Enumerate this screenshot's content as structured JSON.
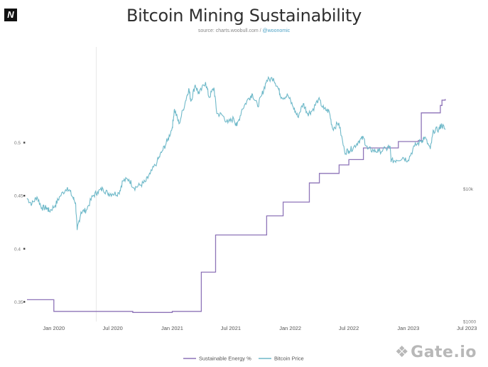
{
  "header": {
    "logo": "N",
    "title": "Bitcoin Mining Sustainability",
    "subtitle_source": "source: charts.woobull.com / ",
    "subtitle_handle": "@woonomic"
  },
  "watermark": {
    "text": "Gate.io",
    "icon": "gate-logo-icon"
  },
  "colors": {
    "energy": "#8e74b8",
    "price": "#6fb9c9",
    "axis_text": "#777777",
    "grid": "#e8e8e8"
  },
  "chart_data": {
    "type": "line",
    "title": "Bitcoin Mining Sustainability",
    "xlabel": "",
    "ylabel_left": "",
    "ylabel_right": "",
    "x_range": [
      "2019-10-10",
      "2023-06-15"
    ],
    "x_ticks": [
      {
        "date": "2020-01-01",
        "label": "Jan 2020"
      },
      {
        "date": "2020-07-01",
        "label": "Jul 2020"
      },
      {
        "date": "2021-01-01",
        "label": "Jan 2021"
      },
      {
        "date": "2021-07-01",
        "label": "Jul 2021"
      },
      {
        "date": "2022-01-01",
        "label": "Jan 2022"
      },
      {
        "date": "2022-07-01",
        "label": "Jul 2022"
      },
      {
        "date": "2023-01-01",
        "label": "Jan 2023"
      },
      {
        "date": "2023-07-01",
        "label": "Jul 2023"
      }
    ],
    "y_left_ticks": [
      {
        "value": 0.35,
        "label": "0.35"
      },
      {
        "value": 0.4,
        "label": "0.4"
      },
      {
        "value": 0.45,
        "label": "0.45"
      },
      {
        "value": 0.5,
        "label": "0.5"
      }
    ],
    "y_left_range": [
      0.3315,
      0.5955
    ],
    "y_right_scale": "log",
    "y_right_ticks": [
      {
        "value": 1000,
        "label": "$1000"
      },
      {
        "value": 10000,
        "label": "$10k"
      }
    ],
    "y_right_range": [
      1000,
      130000
    ],
    "reference_line_date": "2020-05-11",
    "legend_placement": "bottom-center",
    "grid": false,
    "series": [
      {
        "name": "Sustainable Energy %",
        "axis": "left",
        "style": "step",
        "points": [
          [
            "2019-10-10",
            0.352
          ],
          [
            "2020-01-01",
            0.341
          ],
          [
            "2020-09-01",
            0.34
          ],
          [
            "2021-01-01",
            0.341
          ],
          [
            "2021-04-01",
            0.378
          ],
          [
            "2021-05-15",
            0.413
          ],
          [
            "2021-10-20",
            0.431
          ],
          [
            "2021-12-10",
            0.444
          ],
          [
            "2022-03-01",
            0.462
          ],
          [
            "2022-04-01",
            0.471
          ],
          [
            "2022-06-01",
            0.479
          ],
          [
            "2022-07-01",
            0.484
          ],
          [
            "2022-08-15",
            0.495
          ],
          [
            "2022-12-01",
            0.501
          ],
          [
            "2023-02-01",
            0.502
          ],
          [
            "2023-02-10",
            0.528
          ],
          [
            "2023-04-10",
            0.535
          ],
          [
            "2023-04-15",
            0.54
          ],
          [
            "2023-04-25",
            0.541
          ]
        ]
      },
      {
        "name": "Bitcoin Price",
        "axis": "right",
        "style": "line",
        "points": [
          [
            "2019-10-10",
            8500
          ],
          [
            "2019-10-25",
            7700
          ],
          [
            "2019-11-10",
            8700
          ],
          [
            "2019-11-25",
            7200
          ],
          [
            "2019-12-10",
            7200
          ],
          [
            "2019-12-18",
            6800
          ],
          [
            "2020-01-05",
            7500
          ],
          [
            "2020-01-20",
            8800
          ],
          [
            "2020-02-12",
            10300
          ],
          [
            "2020-02-28",
            8700
          ],
          [
            "2020-03-08",
            7900
          ],
          [
            "2020-03-13",
            4900
          ],
          [
            "2020-03-25",
            6700
          ],
          [
            "2020-04-10",
            6900
          ],
          [
            "2020-04-30",
            8800
          ],
          [
            "2020-05-15",
            9500
          ],
          [
            "2020-06-01",
            10000
          ],
          [
            "2020-06-15",
            9300
          ],
          [
            "2020-07-01",
            9200
          ],
          [
            "2020-07-20",
            9300
          ],
          [
            "2020-08-01",
            11500
          ],
          [
            "2020-08-20",
            11800
          ],
          [
            "2020-09-05",
            10200
          ],
          [
            "2020-09-25",
            10700
          ],
          [
            "2020-10-10",
            11300
          ],
          [
            "2020-10-25",
            13000
          ],
          [
            "2020-11-15",
            16000
          ],
          [
            "2020-12-01",
            19300
          ],
          [
            "2020-12-17",
            23000
          ],
          [
            "2021-01-01",
            29000
          ],
          [
            "2021-01-08",
            40000
          ],
          [
            "2021-01-22",
            31000
          ],
          [
            "2021-02-10",
            45000
          ],
          [
            "2021-02-21",
            57000
          ],
          [
            "2021-02-28",
            46000
          ],
          [
            "2021-03-13",
            61000
          ],
          [
            "2021-03-25",
            52000
          ],
          [
            "2021-04-14",
            64000
          ],
          [
            "2021-04-25",
            49000
          ],
          [
            "2021-05-10",
            58000
          ],
          [
            "2021-05-19",
            37000
          ],
          [
            "2021-06-05",
            36000
          ],
          [
            "2021-06-22",
            31500
          ],
          [
            "2021-07-10",
            34000
          ],
          [
            "2021-07-20",
            29800
          ],
          [
            "2021-08-05",
            40000
          ],
          [
            "2021-08-25",
            48000
          ],
          [
            "2021-09-06",
            52000
          ],
          [
            "2021-09-22",
            42000
          ],
          [
            "2021-10-05",
            51000
          ],
          [
            "2021-10-20",
            66000
          ],
          [
            "2021-11-10",
            68500
          ],
          [
            "2021-11-25",
            57000
          ],
          [
            "2021-12-05",
            49000
          ],
          [
            "2021-12-25",
            50500
          ],
          [
            "2022-01-10",
            41500
          ],
          [
            "2022-01-24",
            35000
          ],
          [
            "2022-02-10",
            44000
          ],
          [
            "2022-02-24",
            37000
          ],
          [
            "2022-03-10",
            39000
          ],
          [
            "2022-03-29",
            47500
          ],
          [
            "2022-04-15",
            40000
          ],
          [
            "2022-05-01",
            38500
          ],
          [
            "2022-05-12",
            28500
          ],
          [
            "2022-05-31",
            31500
          ],
          [
            "2022-06-18",
            19000
          ],
          [
            "2022-07-01",
            19500
          ],
          [
            "2022-07-15",
            20500
          ],
          [
            "2022-08-01",
            23000
          ],
          [
            "2022-08-15",
            24300
          ],
          [
            "2022-08-28",
            20000
          ],
          [
            "2022-09-15",
            19500
          ],
          [
            "2022-10-01",
            19200
          ],
          [
            "2022-10-25",
            20000
          ],
          [
            "2022-11-05",
            21000
          ],
          [
            "2022-11-09",
            16200
          ],
          [
            "2022-11-25",
            16500
          ],
          [
            "2022-12-15",
            17300
          ],
          [
            "2022-12-31",
            16500
          ],
          [
            "2023-01-20",
            21000
          ],
          [
            "2023-02-10",
            23000
          ],
          [
            "2023-02-20",
            24500
          ],
          [
            "2023-03-10",
            20000
          ],
          [
            "2023-03-20",
            27500
          ],
          [
            "2023-04-05",
            28200
          ],
          [
            "2023-04-14",
            30500
          ],
          [
            "2023-04-25",
            28000
          ]
        ]
      }
    ]
  }
}
